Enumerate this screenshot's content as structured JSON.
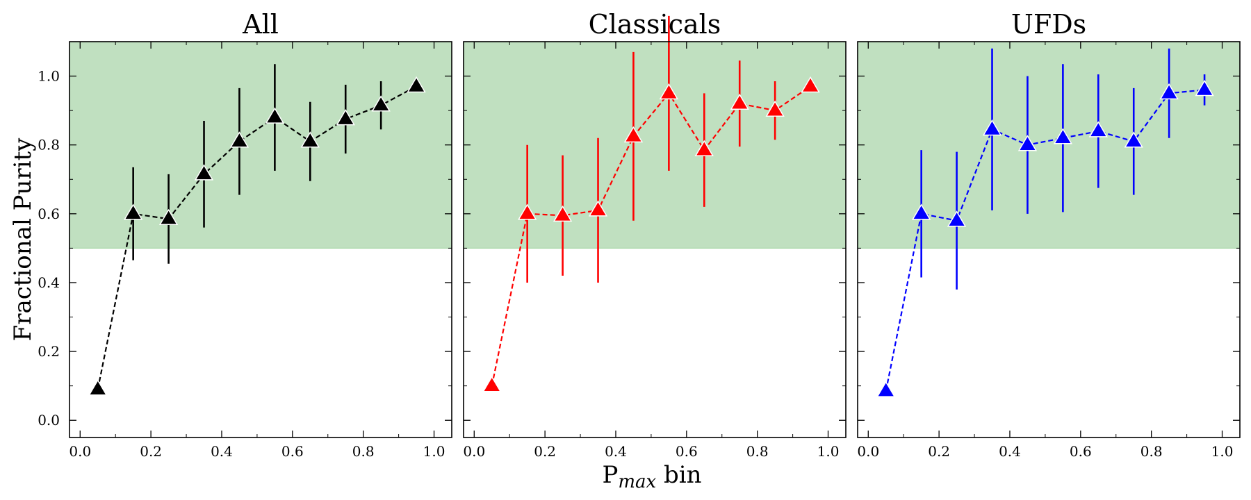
{
  "figure": {
    "xlabel_main": "P",
    "xlabel_sub": "max",
    "xlabel_tail": " bin",
    "ylabel": "Fractional Purity"
  },
  "chart_data": [
    {
      "type": "line",
      "title": "All",
      "color": "#000000",
      "marker": "triangle",
      "linestyle": "dashed",
      "xlim": [
        -0.03,
        1.05
      ],
      "ylim": [
        -0.05,
        1.1
      ],
      "xticks": [
        "0.0",
        "0.2",
        "0.4",
        "0.6",
        "0.8",
        "1.0"
      ],
      "yticks": [
        "0.0",
        "0.2",
        "0.4",
        "0.6",
        "0.8",
        "1.0"
      ],
      "shaded_region": {
        "y_from": 0.5,
        "y_to": 1.1,
        "color": "#c0e0c0"
      },
      "x": [
        0.05,
        0.15,
        0.25,
        0.35,
        0.45,
        0.55,
        0.65,
        0.75,
        0.85,
        0.95
      ],
      "y": [
        0.09,
        0.6,
        0.585,
        0.715,
        0.81,
        0.88,
        0.81,
        0.875,
        0.915,
        0.97
      ],
      "yerr": [
        0.0,
        0.135,
        0.13,
        0.155,
        0.155,
        0.155,
        0.115,
        0.1,
        0.07,
        0.0
      ]
    },
    {
      "type": "line",
      "title": "Classicals",
      "color": "#ff0000",
      "marker": "triangle",
      "linestyle": "dashed",
      "xlim": [
        -0.03,
        1.05
      ],
      "ylim": [
        -0.05,
        1.1
      ],
      "xticks": [
        "0.0",
        "0.2",
        "0.4",
        "0.6",
        "0.8",
        "1.0"
      ],
      "yticks": [
        "0.0",
        "0.2",
        "0.4",
        "0.6",
        "0.8",
        "1.0"
      ],
      "shaded_region": {
        "y_from": 0.5,
        "y_to": 1.1,
        "color": "#c0e0c0"
      },
      "x": [
        0.05,
        0.15,
        0.25,
        0.35,
        0.45,
        0.55,
        0.65,
        0.75,
        0.85,
        0.95
      ],
      "y": [
        0.1,
        0.6,
        0.595,
        0.61,
        0.825,
        0.95,
        0.785,
        0.92,
        0.9,
        0.97
      ],
      "yerr": [
        0.0,
        0.2,
        0.175,
        0.21,
        0.245,
        0.225,
        0.165,
        0.125,
        0.085,
        0.0
      ]
    },
    {
      "type": "line",
      "title": "UFDs",
      "color": "#0000ff",
      "marker": "triangle",
      "linestyle": "dashed",
      "xlim": [
        -0.03,
        1.05
      ],
      "ylim": [
        -0.05,
        1.1
      ],
      "xticks": [
        "0.0",
        "0.2",
        "0.4",
        "0.6",
        "0.8",
        "1.0"
      ],
      "yticks": [
        "0.0",
        "0.2",
        "0.4",
        "0.6",
        "0.8",
        "1.0"
      ],
      "shaded_region": {
        "y_from": 0.5,
        "y_to": 1.1,
        "color": "#c0e0c0"
      },
      "x": [
        0.05,
        0.15,
        0.25,
        0.35,
        0.45,
        0.55,
        0.65,
        0.75,
        0.85,
        0.95
      ],
      "y": [
        0.085,
        0.6,
        0.58,
        0.845,
        0.8,
        0.82,
        0.84,
        0.81,
        0.95,
        0.96
      ],
      "yerr": [
        0.0,
        0.185,
        0.2,
        0.235,
        0.2,
        0.215,
        0.165,
        0.155,
        0.13,
        0.045
      ]
    }
  ]
}
